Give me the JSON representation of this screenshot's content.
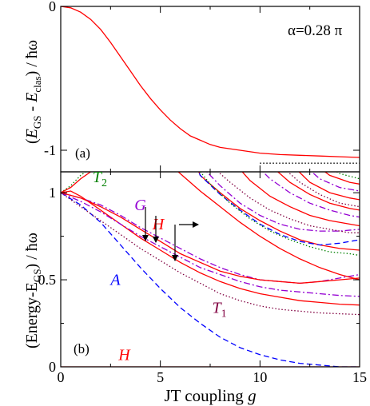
{
  "chart_data": [
    {
      "panel": "a",
      "type": "line",
      "panel_label": "(a)",
      "annotation": "α=0.28 π",
      "ylabel_parts": {
        "open": "(",
        "e1": "E",
        "sub1": "GS",
        "minus": " - ",
        "e2": "E",
        "sub2": "clas",
        "close": ") / ħω"
      },
      "xlim": [
        0,
        15
      ],
      "ylim": [
        -1.15,
        0
      ],
      "yticks": [
        0,
        -1
      ],
      "ytick_labels": [
        "0",
        "-1"
      ],
      "series": [
        {
          "style": "solid",
          "color": "#ff0000",
          "x": [
            0,
            0.5,
            1,
            1.5,
            2,
            2.5,
            3,
            3.5,
            4,
            4.5,
            5,
            5.5,
            6,
            6.5,
            7,
            7.5,
            8,
            9,
            10,
            11,
            12,
            13,
            14,
            15
          ],
          "y": [
            0,
            -0.01,
            -0.04,
            -0.09,
            -0.16,
            -0.25,
            -0.35,
            -0.45,
            -0.55,
            -0.64,
            -0.72,
            -0.79,
            -0.85,
            -0.9,
            -0.93,
            -0.96,
            -0.98,
            -1.0,
            -1.02,
            -1.03,
            -1.035,
            -1.04,
            -1.045,
            -1.05
          ]
        },
        {
          "style": "dotted",
          "color": "#000000",
          "x": [
            10,
            15
          ],
          "y": [
            -1.09,
            -1.09
          ]
        }
      ]
    },
    {
      "panel": "b",
      "type": "line",
      "panel_label": "(b)",
      "ylabel": "(Energy-E",
      "ylabel_sub": "GS",
      "ylabel_tail": ") / ħω",
      "xlabel_main": "JT coupling ",
      "xlabel_var": "g",
      "xlim": [
        0,
        15
      ],
      "ylim": [
        0,
        1.12
      ],
      "xticks": [
        0,
        5,
        10,
        15
      ],
      "xtick_labels": [
        "0",
        "5",
        "10",
        "15"
      ],
      "yticks": [
        0,
        0.5,
        1
      ],
      "ytick_labels": [
        "0",
        "0.5",
        "1"
      ],
      "labels": [
        {
          "text": "T",
          "sub": "2",
          "color": "#008000",
          "x": 1.6,
          "y": 1.06
        },
        {
          "text": "G",
          "sub": "",
          "color": "#9400d3",
          "x": 3.7,
          "y": 0.9
        },
        {
          "text": "H",
          "sub": "",
          "color": "#ff0000",
          "x": 4.6,
          "y": 0.79
        },
        {
          "text": "A",
          "sub": "",
          "color": "#0000ff",
          "x": 2.5,
          "y": 0.47
        },
        {
          "text": "T",
          "sub": "1",
          "color": "#800040",
          "x": 7.6,
          "y": 0.31
        },
        {
          "text": "H",
          "sub": "",
          "color": "#ff0000",
          "x": 2.9,
          "y": 0.04
        }
      ],
      "series": [
        {
          "style": "solid",
          "color": "#ff0000",
          "x": [
            0,
            15
          ],
          "y": [
            0,
            0
          ]
        },
        {
          "style": "dashed",
          "color": "#0000ff",
          "x": [
            0,
            1,
            2,
            3,
            4,
            5,
            6,
            7,
            8,
            9,
            10,
            11,
            12,
            13,
            14,
            15
          ],
          "y": [
            1.0,
            0.93,
            0.83,
            0.7,
            0.57,
            0.45,
            0.34,
            0.25,
            0.17,
            0.11,
            0.07,
            0.04,
            0.02,
            0.01,
            0.0,
            0.0
          ]
        },
        {
          "style": "solid",
          "color": "#ff0000",
          "x": [
            0,
            0.5,
            1,
            2,
            3,
            4,
            5,
            6,
            7,
            8,
            9,
            10,
            11,
            12,
            13,
            14,
            15
          ],
          "y": [
            1.0,
            1.01,
            0.98,
            0.9,
            0.82,
            0.74,
            0.67,
            0.6,
            0.54,
            0.49,
            0.45,
            0.42,
            0.4,
            0.38,
            0.37,
            0.36,
            0.355
          ]
        },
        {
          "style": "dotted",
          "color": "#800040",
          "x": [
            0,
            1,
            2,
            3,
            4,
            5,
            6,
            7,
            8,
            9,
            10,
            11,
            12,
            13,
            14,
            15
          ],
          "y": [
            1.0,
            0.92,
            0.84,
            0.76,
            0.68,
            0.61,
            0.54,
            0.48,
            0.42,
            0.38,
            0.35,
            0.33,
            0.32,
            0.31,
            0.305,
            0.3
          ]
        },
        {
          "style": "dashdot",
          "color": "#9400d3",
          "x": [
            0,
            1,
            2,
            3,
            4,
            5,
            6,
            7,
            8,
            9,
            10,
            11,
            12,
            13,
            14,
            15
          ],
          "y": [
            1.0,
            0.95,
            0.89,
            0.82,
            0.75,
            0.69,
            0.63,
            0.57,
            0.53,
            0.49,
            0.46,
            0.44,
            0.43,
            0.42,
            0.41,
            0.405
          ]
        },
        {
          "style": "dashdot",
          "color": "#9400d3",
          "x": [
            0,
            1,
            2,
            3,
            4,
            5,
            6,
            7,
            8,
            9,
            10,
            11,
            12,
            13,
            14,
            15
          ],
          "y": [
            1.0,
            0.97,
            0.93,
            0.87,
            0.8,
            0.74,
            0.68,
            0.62,
            0.57,
            0.53,
            0.5,
            0.49,
            0.48,
            0.49,
            0.51,
            0.53
          ]
        },
        {
          "style": "solid",
          "color": "#ff0000",
          "x": [
            0,
            1,
            2,
            3,
            4,
            5,
            6,
            7,
            8,
            9,
            10,
            11,
            12,
            13,
            14,
            15
          ],
          "y": [
            1.0,
            0.97,
            0.92,
            0.86,
            0.79,
            0.72,
            0.65,
            0.6,
            0.55,
            0.52,
            0.5,
            0.49,
            0.48,
            0.49,
            0.5,
            0.51
          ]
        },
        {
          "style": "dotted",
          "color": "#008000",
          "x": [
            0,
            0.5,
            1,
            1.5,
            2
          ],
          "y": [
            1.0,
            1.04,
            1.1,
            1.14,
            1.16
          ]
        },
        {
          "style": "solid",
          "color": "#ff0000",
          "x": [
            0,
            0.5,
            1,
            1.5,
            2
          ],
          "y": [
            1.0,
            1.03,
            1.08,
            1.12,
            1.15
          ]
        },
        {
          "style": "solid",
          "color": "#ff0000",
          "x": [
            5.5,
            6,
            7,
            8,
            9,
            10,
            11,
            12,
            13,
            14,
            15
          ],
          "y": [
            1.16,
            1.11,
            1.01,
            0.92,
            0.83,
            0.75,
            0.68,
            0.62,
            0.57,
            0.53,
            0.5
          ]
        },
        {
          "style": "solid",
          "color": "#ff0000",
          "x": [
            6.8,
            7,
            8,
            9,
            10,
            11,
            12,
            13,
            14,
            15
          ],
          "y": [
            1.16,
            1.1,
            1.0,
            0.91,
            0.84,
            0.78,
            0.73,
            0.7,
            0.68,
            0.67
          ]
        },
        {
          "style": "dashed",
          "color": "#0000ff",
          "x": [
            6.8,
            7,
            8,
            9,
            10,
            11,
            12,
            13,
            14,
            15
          ],
          "y": [
            1.16,
            1.1,
            0.99,
            0.9,
            0.82,
            0.76,
            0.72,
            0.7,
            0.71,
            0.73
          ]
        },
        {
          "style": "dotted",
          "color": "#008000",
          "x": [
            6.8,
            7.5,
            8.5,
            9.5,
            10.5,
            11.5,
            12.5,
            13.5,
            14.5,
            15
          ],
          "y": [
            1.15,
            1.05,
            0.94,
            0.85,
            0.78,
            0.73,
            0.69,
            0.66,
            0.65,
            0.64
          ]
        },
        {
          "style": "dashdot",
          "color": "#9400d3",
          "x": [
            7,
            8,
            9,
            10,
            11,
            12,
            13,
            14,
            15
          ],
          "y": [
            1.16,
            1.04,
            0.94,
            0.87,
            0.82,
            0.79,
            0.78,
            0.78,
            0.79
          ]
        },
        {
          "style": "dotted",
          "color": "#800040",
          "x": [
            7.5,
            8.5,
            9.5,
            10.5,
            11.5,
            12.5,
            13.5,
            14.5,
            15
          ],
          "y": [
            1.16,
            1.06,
            0.97,
            0.9,
            0.85,
            0.81,
            0.79,
            0.77,
            0.77
          ]
        },
        {
          "style": "solid",
          "color": "#ff0000",
          "x": [
            8.8,
            9.5,
            10.5,
            11.5,
            12.5,
            13.5,
            14.5,
            15
          ],
          "y": [
            1.16,
            1.07,
            0.98,
            0.92,
            0.87,
            0.84,
            0.82,
            0.81
          ]
        },
        {
          "style": "dashdot",
          "color": "#9400d3",
          "x": [
            9.8,
            10.5,
            11.5,
            12.5,
            13.5,
            14.5,
            15
          ],
          "y": [
            1.16,
            1.08,
            1.0,
            0.94,
            0.9,
            0.87,
            0.86
          ]
        },
        {
          "style": "solid",
          "color": "#ff0000",
          "x": [
            10.5,
            11.5,
            12.5,
            13.5,
            14.5,
            15
          ],
          "y": [
            1.16,
            1.06,
            0.99,
            0.94,
            0.91,
            0.9
          ]
        },
        {
          "style": "dotted",
          "color": "#800040",
          "x": [
            11,
            12,
            13,
            14,
            15
          ],
          "y": [
            1.16,
            1.06,
            0.99,
            0.94,
            0.92
          ]
        },
        {
          "style": "solid",
          "color": "#ff0000",
          "x": [
            11.6,
            12.5,
            13.5,
            14.5,
            15
          ],
          "y": [
            1.16,
            1.06,
            1.0,
            0.97,
            0.96
          ]
        },
        {
          "style": "dashdot",
          "color": "#9400d3",
          "x": [
            12.2,
            13,
            14,
            15
          ],
          "y": [
            1.16,
            1.08,
            1.03,
            1.01
          ]
        },
        {
          "style": "solid",
          "color": "#ff0000",
          "x": [
            12.8,
            13.5,
            14.5,
            15
          ],
          "y": [
            1.16,
            1.1,
            1.06,
            1.05
          ]
        },
        {
          "style": "dotted",
          "color": "#008000",
          "x": [
            13.3,
            14,
            15
          ],
          "y": [
            1.16,
            1.11,
            1.08
          ]
        },
        {
          "style": "dashed",
          "color": "#0000ff",
          "x": [
            13.8,
            14.5,
            15
          ],
          "y": [
            1.16,
            1.13,
            1.12
          ]
        }
      ]
    }
  ]
}
